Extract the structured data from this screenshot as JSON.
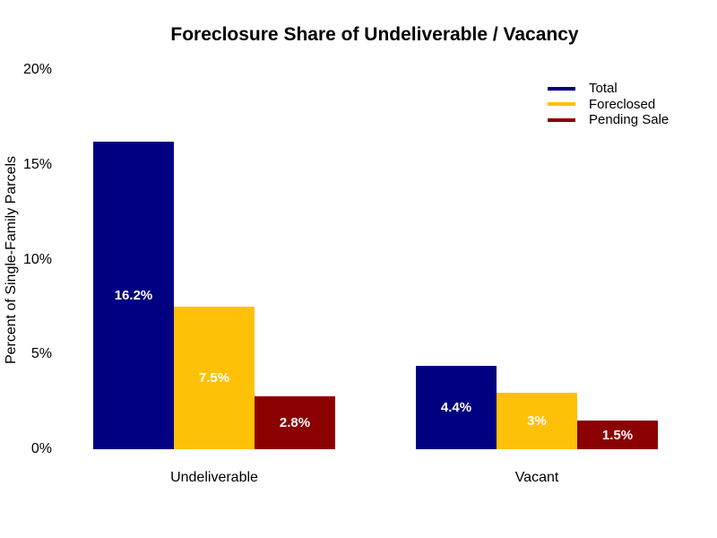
{
  "chart_data": {
    "type": "bar",
    "title": "Foreclosure Share of Undeliverable / Vacancy",
    "xlabel": "",
    "ylabel": "Percent of Single-Family Parcels",
    "categories": [
      "Undeliverable",
      "Vacant"
    ],
    "series": [
      {
        "name": "Total",
        "color": "#000080",
        "values": [
          16.2,
          4.4
        ],
        "value_labels": [
          "16.2%",
          "4.4%"
        ]
      },
      {
        "name": "Foreclosed",
        "color": "#FFC107",
        "values": [
          7.5,
          3
        ],
        "value_labels": [
          "7.5%",
          "3%"
        ]
      },
      {
        "name": "Pending Sale",
        "color": "#8B0000",
        "values": [
          2.8,
          1.5
        ],
        "value_labels": [
          "2.8%",
          "1.5%"
        ]
      }
    ],
    "ylim": [
      0,
      20
    ],
    "yticks": [
      0,
      5,
      10,
      15,
      20
    ],
    "ytick_labels": [
      "0%",
      "5%",
      "10%",
      "15%",
      "20%"
    ],
    "grid": false,
    "axis_lines": false,
    "legend_position": "top-right",
    "value_label_color": "#FFFFFF",
    "background": "#FFFFFF",
    "text_color": "#000000"
  }
}
